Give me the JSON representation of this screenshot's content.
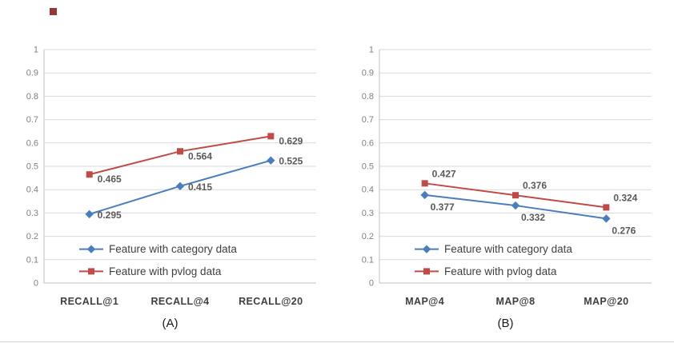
{
  "decor": {
    "bullet_color": "#953735"
  },
  "chart_data": [
    {
      "type": "line",
      "caption": "(A)",
      "categories": [
        "RECALL@1",
        "RECALL@4",
        "RECALL@20"
      ],
      "yticks": [
        "0",
        "0.1",
        "0.2",
        "0.3",
        "0.4",
        "0.5",
        "0.6",
        "0.7",
        "0.8",
        "0.9",
        "1"
      ],
      "ylim": [
        0,
        1
      ],
      "grid": true,
      "legend_position": "inside-bottom-left",
      "series": [
        {
          "name": "Feature with category data",
          "color": "#4a7ebb",
          "marker": "diamond",
          "values": [
            0.295,
            0.415,
            0.525
          ],
          "label_offset": [
            10,
            5
          ]
        },
        {
          "name": "Feature with pvlog data",
          "color": "#bf4b48",
          "marker": "square",
          "values": [
            0.465,
            0.564,
            0.629
          ],
          "label_offset": [
            10,
            10
          ]
        }
      ]
    },
    {
      "type": "line",
      "caption": "(B)",
      "categories": [
        "MAP@4",
        "MAP@8",
        "MAP@20"
      ],
      "yticks": [
        "0",
        "0.1",
        "0.2",
        "0.3",
        "0.4",
        "0.5",
        "0.6",
        "0.7",
        "0.8",
        "0.9",
        "1"
      ],
      "ylim": [
        0,
        1
      ],
      "grid": true,
      "legend_position": "inside-bottom-left",
      "series": [
        {
          "name": "Feature with category data",
          "color": "#4a7ebb",
          "marker": "diamond",
          "values": [
            0.377,
            0.332,
            0.276
          ],
          "label_offset": [
            7,
            19
          ]
        },
        {
          "name": "Feature with pvlog data",
          "color": "#bf4b48",
          "marker": "square",
          "values": [
            0.427,
            0.376,
            0.324
          ],
          "label_offset": [
            9,
            -8
          ]
        }
      ]
    }
  ],
  "style_colors": {
    "gridline": "#d9d9d9",
    "axis": "#bfbfbf",
    "tick_label": "#7f7f7f",
    "category_label": "#3f3f3f",
    "data_label": "#595959",
    "legend_label": "#3f3f3f"
  }
}
